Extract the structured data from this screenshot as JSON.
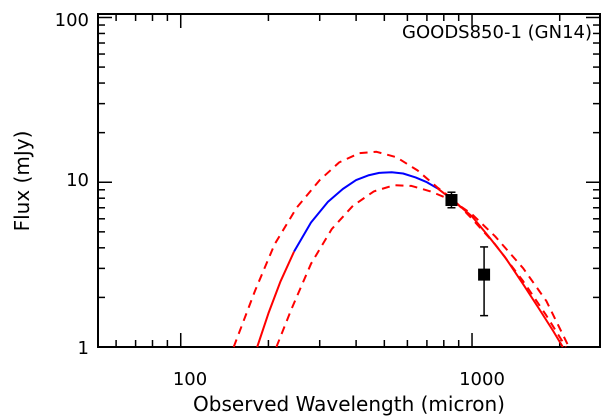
{
  "chart_data": {
    "type": "scatter",
    "title": "GOODS850-1 (GN14)",
    "xlabel": "Observed Wavelength (micron)",
    "ylabel": "Flux (mJy)",
    "xscale": "log",
    "yscale": "log",
    "xlim": [
      52,
      2750
    ],
    "ylim": [
      1,
      105
    ],
    "x_tick_labels": [
      "100",
      "1000"
    ],
    "y_tick_labels": [
      "1",
      "10",
      "100"
    ],
    "grid": false,
    "legend": "none",
    "series": [
      {
        "style": "solid",
        "color": "#ff0000",
        "x": [
          183,
          200,
          220,
          245
        ],
        "y": [
          1.0,
          1.6,
          2.5,
          3.8
        ]
      },
      {
        "style": "solid",
        "color": "#0000ff",
        "x": [
          245,
          280,
          320,
          360,
          400,
          440,
          480,
          530,
          580,
          640,
          700,
          760
        ],
        "y": [
          3.8,
          5.7,
          7.6,
          9.1,
          10.3,
          11.0,
          11.4,
          11.5,
          11.3,
          10.7,
          10.0,
          9.2
        ]
      },
      {
        "style": "solid",
        "color": "#ff0000",
        "x": [
          760,
          850,
          1000,
          1150,
          1300,
          1500,
          1700,
          1900,
          2050
        ],
        "y": [
          9.2,
          7.9,
          6.2,
          4.6,
          3.5,
          2.4,
          1.7,
          1.25,
          1.0
        ]
      },
      {
        "style": "dashed",
        "color": "#ff0000",
        "x": [
          152,
          180,
          210,
          250,
          300,
          350,
          410,
          470,
          550,
          650,
          760,
          860,
          1000,
          1200,
          1500,
          1800,
          2100
        ],
        "y": [
          1.0,
          2.2,
          4.2,
          7.0,
          10.3,
          13.2,
          15.0,
          15.3,
          14.2,
          11.8,
          9.3,
          7.9,
          6.0,
          4.2,
          2.5,
          1.55,
          1.0
        ]
      },
      {
        "style": "dashed",
        "color": "#ff0000",
        "x": [
          213,
          240,
          280,
          330,
          390,
          460,
          540,
          620,
          720,
          850,
          1000,
          1200,
          1500,
          1800,
          2150
        ],
        "y": [
          1.0,
          1.7,
          3.2,
          5.2,
          7.2,
          8.8,
          9.6,
          9.5,
          8.8,
          7.8,
          6.4,
          4.7,
          3.0,
          1.9,
          1.0
        ]
      }
    ],
    "points": [
      {
        "x": 850,
        "y": 7.8,
        "yerr_low": 7.0,
        "yerr_high": 8.7
      },
      {
        "x": 1100,
        "y": 2.75,
        "yerr_low": 1.55,
        "yerr_high": 4.05
      }
    ]
  }
}
